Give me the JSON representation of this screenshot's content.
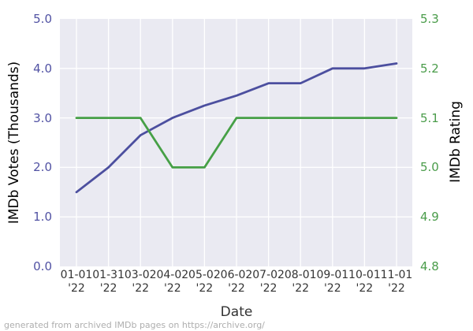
{
  "figure": {
    "caption": "generated from archived IMDb pages on https://archive.org/"
  },
  "chart_data": {
    "type": "line",
    "title": "",
    "xlabel": "Date",
    "grid": true,
    "legend": "none",
    "background": "#eaeaf2",
    "gridline_color": "#ffffff",
    "categories": [
      "01-01 '22",
      "01-31 '22",
      "03-02 '22",
      "04-02 '22",
      "05-02 '22",
      "06-02 '22",
      "07-02 '22",
      "08-01 '22",
      "09-01 '22",
      "10-01 '22",
      "11-01 '22"
    ],
    "x_ticks": [
      {
        "line1": "01-01",
        "line2": "'22"
      },
      {
        "line1": "01-31",
        "line2": "'22"
      },
      {
        "line1": "03-02",
        "line2": "'22"
      },
      {
        "line1": "04-02",
        "line2": "'22"
      },
      {
        "line1": "05-02",
        "line2": "'22"
      },
      {
        "line1": "06-02",
        "line2": "'22"
      },
      {
        "line1": "07-02",
        "line2": "'22"
      },
      {
        "line1": "08-01",
        "line2": "'22"
      },
      {
        "line1": "09-01",
        "line2": "'22"
      },
      {
        "line1": "10-01",
        "line2": "'22"
      },
      {
        "line1": "11-01",
        "line2": "'22"
      }
    ],
    "left_axis": {
      "label": "IMDb Votes (Thousands)",
      "color": "#5152a3",
      "range": [
        0.0,
        5.0
      ],
      "ticks": [
        "0.0",
        "1.0",
        "2.0",
        "3.0",
        "4.0",
        "5.0"
      ]
    },
    "right_axis": {
      "label": "IMDb Rating",
      "color": "#4a9c4a",
      "range": [
        4.8,
        5.3
      ],
      "ticks": [
        "4.8",
        "4.9",
        "5.0",
        "5.1",
        "5.2",
        "5.3"
      ]
    },
    "series": [
      {
        "name": "IMDb Votes (Thousands)",
        "axis": "left",
        "color": "#4c4f9f",
        "values": [
          1.5,
          2.0,
          2.65,
          3.0,
          3.25,
          3.45,
          3.7,
          3.7,
          4.0,
          4.0,
          4.1
        ]
      },
      {
        "name": "IMDb Rating",
        "axis": "right",
        "color": "#46a046",
        "values": [
          5.1,
          5.1,
          5.1,
          5.0,
          5.0,
          5.1,
          5.1,
          5.1,
          5.1,
          5.1,
          5.1
        ]
      }
    ]
  }
}
